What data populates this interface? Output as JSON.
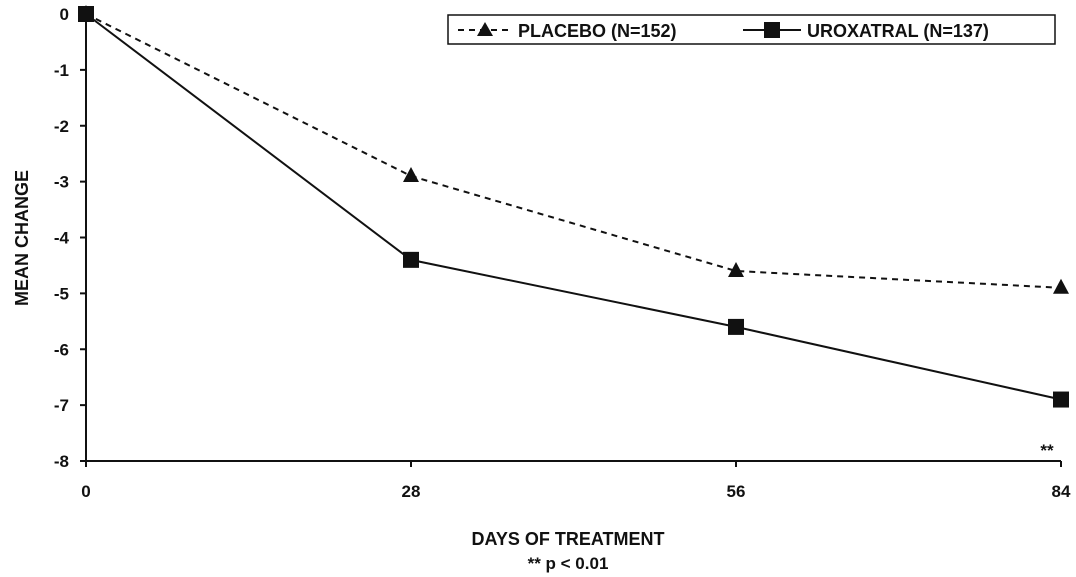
{
  "chart_data": {
    "type": "line",
    "title": "",
    "xlabel": "DAYS OF TREATMENT",
    "ylabel": "MEAN CHANGE",
    "footnote": "** p < 0.01",
    "x": [
      0,
      28,
      56,
      84
    ],
    "xticks": [
      "0",
      "28",
      "56",
      "84"
    ],
    "xlim": [
      0,
      84
    ],
    "ylim": [
      -8,
      0
    ],
    "yticks": [
      "0",
      "-1",
      "-2",
      "-3",
      "-4",
      "-5",
      "-6",
      "-7",
      "-8"
    ],
    "grid": false,
    "legend_position": "top-right",
    "series": [
      {
        "name": "PLACEBO (N=152)",
        "values": [
          0,
          -2.9,
          -4.6,
          -4.9
        ],
        "line_style": "dashed",
        "marker": "triangle",
        "color": "#111111"
      },
      {
        "name": "UROXATRAL (N=137)",
        "values": [
          0,
          -4.4,
          -5.6,
          -6.9
        ],
        "line_style": "solid",
        "marker": "square",
        "color": "#111111"
      }
    ],
    "annotations": [
      {
        "text": "**",
        "x": 84,
        "y": -7.8
      }
    ]
  }
}
